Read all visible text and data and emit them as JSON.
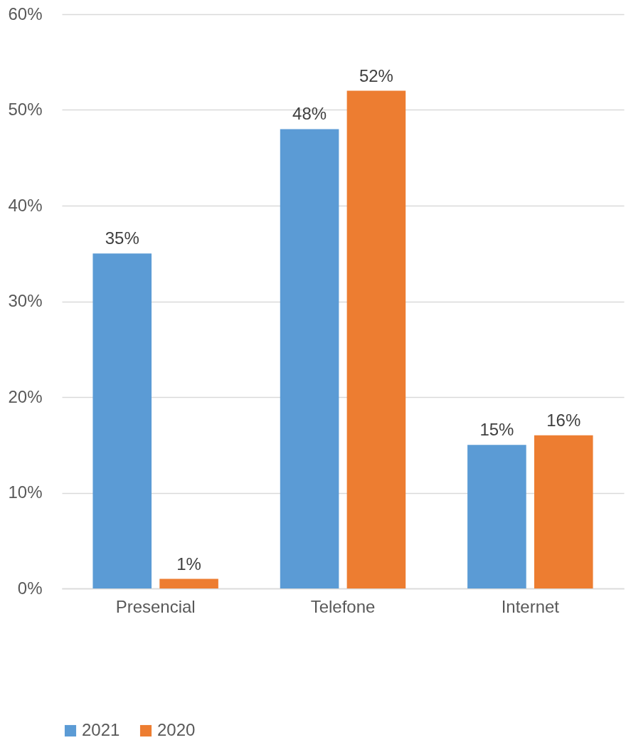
{
  "chart_data": {
    "type": "bar",
    "categories": [
      "Presencial",
      "Telefone",
      "Internet"
    ],
    "series": [
      {
        "name": "2021",
        "color": "#5b9bd5",
        "values": [
          35,
          48,
          15
        ],
        "value_labels": [
          "35%",
          "48%",
          "15%"
        ]
      },
      {
        "name": "2020",
        "color": "#ed7d31",
        "values": [
          1,
          52,
          16
        ],
        "value_labels": [
          "1%",
          "52%",
          "16%"
        ]
      }
    ],
    "ylim": [
      0,
      60
    ],
    "yticks": [
      {
        "value": 0,
        "label": "0%"
      },
      {
        "value": 10,
        "label": "10%"
      },
      {
        "value": 20,
        "label": "20%"
      },
      {
        "value": 30,
        "label": "30%"
      },
      {
        "value": 40,
        "label": "40%"
      },
      {
        "value": 50,
        "label": "50%"
      },
      {
        "value": 60,
        "label": "60%"
      }
    ],
    "grid": "y",
    "legend": "bottom"
  }
}
